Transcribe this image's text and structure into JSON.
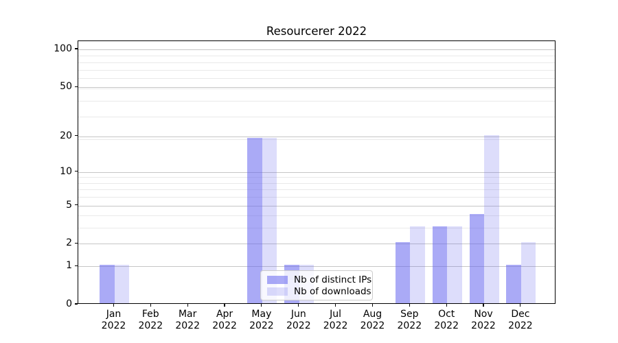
{
  "figure": {
    "background": "#ffffff",
    "spine_color": "#000000"
  },
  "chart_data": {
    "type": "bar",
    "title": "Resourcerer 2022",
    "xlabel": "",
    "ylabel": "",
    "yscale": "log10(1+x)",
    "ylim": [
      0,
      116
    ],
    "grid": {
      "show": true,
      "major_color": "#c6c6c6",
      "minor_color": "#e9e9e9"
    },
    "categories": [
      {
        "month": "Jan",
        "year": "2022"
      },
      {
        "month": "Feb",
        "year": "2022"
      },
      {
        "month": "Mar",
        "year": "2022"
      },
      {
        "month": "Apr",
        "year": "2022"
      },
      {
        "month": "May",
        "year": "2022"
      },
      {
        "month": "Jun",
        "year": "2022"
      },
      {
        "month": "Jul",
        "year": "2022"
      },
      {
        "month": "Aug",
        "year": "2022"
      },
      {
        "month": "Sep",
        "year": "2022"
      },
      {
        "month": "Oct",
        "year": "2022"
      },
      {
        "month": "Nov",
        "year": "2022"
      },
      {
        "month": "Dec",
        "year": "2022"
      }
    ],
    "series": [
      {
        "name": "Nb of distinct IPs",
        "color": "rgba(100,100,238,0.55)",
        "values": [
          1,
          0,
          0,
          0,
          19,
          1,
          0,
          0,
          2,
          3,
          4,
          1
        ]
      },
      {
        "name": "Nb of downloads",
        "color": "rgba(100,100,238,0.22)",
        "values": [
          1,
          0,
          0,
          0,
          19,
          1,
          0,
          0,
          3,
          3,
          20,
          2
        ]
      }
    ],
    "yticks": [
      {
        "value": 0,
        "label": "0"
      },
      {
        "value": 1,
        "label": "1"
      },
      {
        "value": 2,
        "label": "2"
      },
      {
        "value": 5,
        "label": "5"
      },
      {
        "value": 10,
        "label": "10"
      },
      {
        "value": 20,
        "label": "20"
      },
      {
        "value": 50,
        "label": "50"
      },
      {
        "value": 100,
        "label": "100"
      }
    ],
    "legend": {
      "position": "lower center",
      "background": "rgba(255,255,255,0.8)",
      "border_color": "#cccccc"
    }
  }
}
